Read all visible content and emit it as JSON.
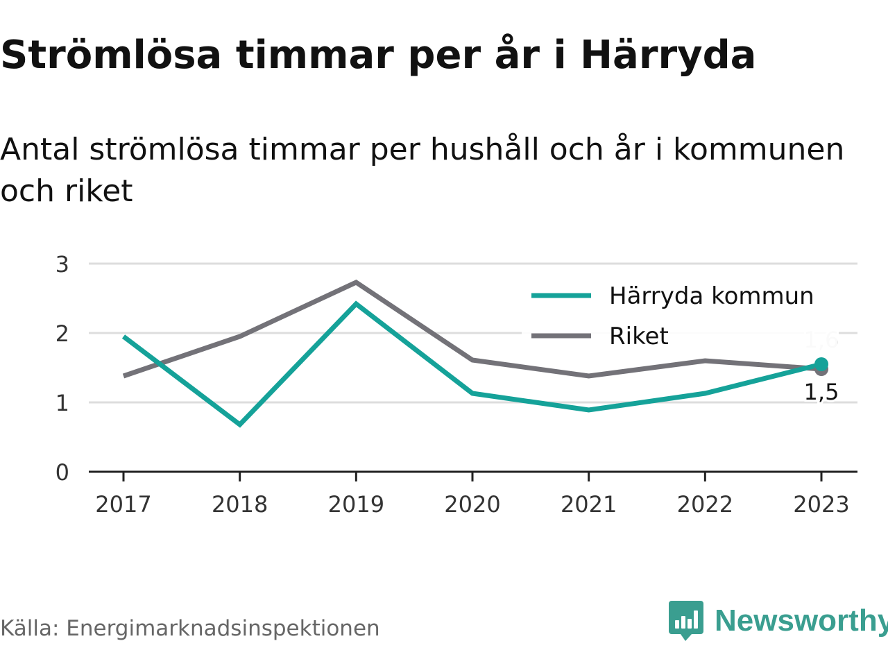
{
  "title": "Strömlösa timmar per år i Härryda",
  "subtitle": "Antal strömlösa timmar per hushåll och år i kommunen och riket",
  "source": "Källa: Energimarknadsinspektionen",
  "logo": {
    "text": "Newsworthy",
    "icon": "bar-chart-speech-bubble-icon",
    "color": "#3a9e90"
  },
  "chart_data": {
    "type": "line",
    "x": [
      "2017",
      "2018",
      "2019",
      "2020",
      "2021",
      "2022",
      "2023"
    ],
    "ylim": [
      0,
      3
    ],
    "yticks": [
      "0",
      "1",
      "2",
      "3"
    ],
    "grid": true,
    "legend_position": "top-right",
    "series": [
      {
        "name": "Härryda kommun",
        "color": "#15a299",
        "values": [
          1.95,
          0.68,
          2.42,
          1.13,
          0.89,
          1.13,
          1.55
        ],
        "end_label": "1,6"
      },
      {
        "name": "Riket",
        "color": "#737278",
        "values": [
          1.38,
          1.95,
          2.73,
          1.61,
          1.38,
          1.6,
          1.48
        ],
        "end_label": "1,5"
      }
    ]
  }
}
